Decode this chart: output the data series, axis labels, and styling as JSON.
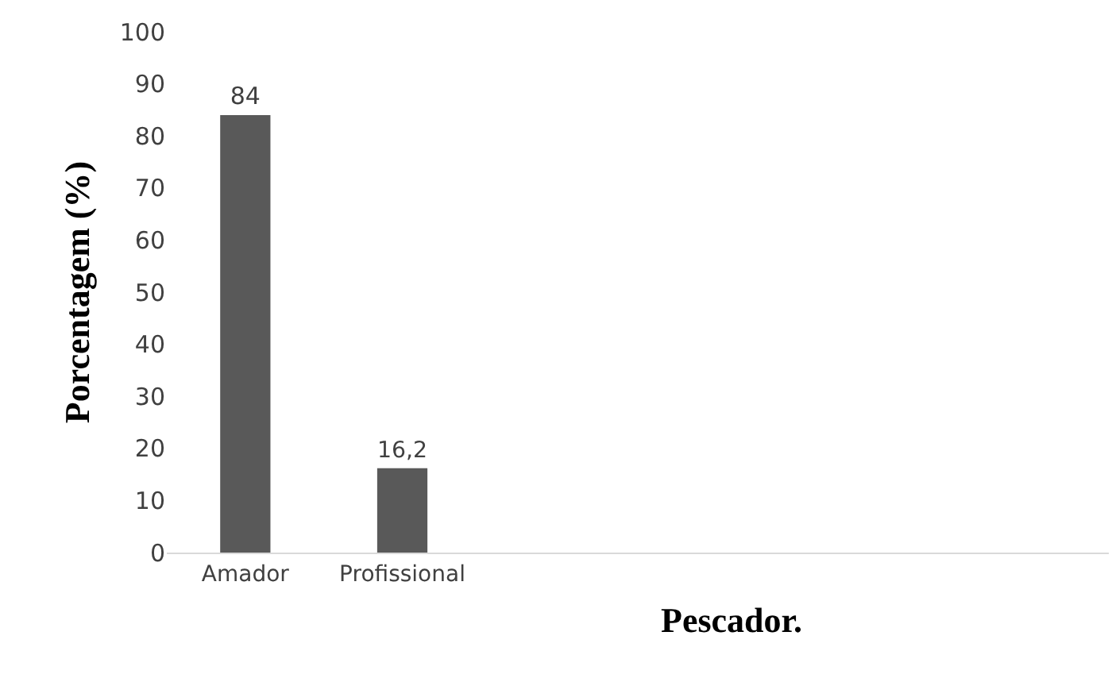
{
  "chart_data": {
    "type": "bar",
    "xlabel": "Pescador.",
    "ylabel": "Porcentagem (%)",
    "categories": [
      "Amador",
      "Profissional",
      null,
      null,
      null,
      null
    ],
    "values": [
      84,
      16.2,
      null,
      null,
      null,
      null
    ],
    "value_labels": [
      "84",
      "16,2",
      null,
      null,
      null,
      null
    ],
    "color": "#595959",
    "ylim": [
      0,
      100
    ],
    "yticks": [
      0,
      10,
      20,
      30,
      40,
      50,
      60,
      70,
      80,
      90,
      100
    ],
    "grid": false,
    "legend": false
  }
}
